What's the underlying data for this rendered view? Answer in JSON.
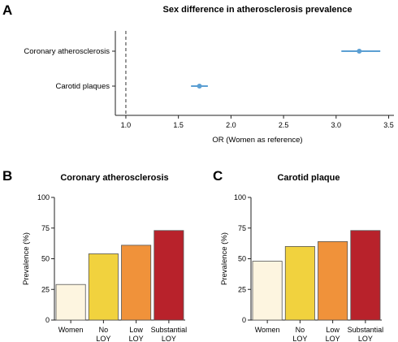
{
  "chart_data": [
    {
      "panel": "A",
      "type": "scatter",
      "title": "Sex difference in atherosclerosis prevalence",
      "xlabel": "OR (Women as reference)",
      "ylabel": "",
      "categories": [
        "Coronary atherosclerosis",
        "Carotid plaques"
      ],
      "estimates": [
        3.22,
        1.7
      ],
      "ci_low": [
        3.05,
        1.62
      ],
      "ci_high": [
        3.42,
        1.78
      ],
      "xlim": [
        0.9,
        3.55
      ],
      "xticks": [
        "1.0",
        "1.5",
        "2.0",
        "2.5",
        "3.0",
        "3.5"
      ],
      "reference_line": 1.0,
      "grid": false,
      "colors": {
        "point": "#5b9fd3",
        "reference": "#555555"
      }
    },
    {
      "panel": "B",
      "type": "bar",
      "title": "Coronary atherosclerosis",
      "ylabel": "Prevalence (%)",
      "categories": [
        [
          "Women"
        ],
        [
          "No",
          "LOY"
        ],
        [
          "Low",
          "LOY"
        ],
        [
          "Substantial",
          "LOY"
        ]
      ],
      "values": [
        29,
        54,
        61,
        73
      ],
      "ylim": [
        0,
        100
      ],
      "yticks": [
        "0",
        "25",
        "50",
        "75",
        "100"
      ],
      "grid": false,
      "colors": [
        "#fdf5e0",
        "#f1d23e",
        "#f0923a",
        "#b8222b"
      ]
    },
    {
      "panel": "C",
      "type": "bar",
      "title": "Carotid plaque",
      "ylabel": "Prevalence (%)",
      "categories": [
        [
          "Women"
        ],
        [
          "No",
          "LOY"
        ],
        [
          "Low",
          "LOY"
        ],
        [
          "Substantial",
          "LOY"
        ]
      ],
      "values": [
        48,
        60,
        64,
        73
      ],
      "ylim": [
        0,
        100
      ],
      "yticks": [
        "0",
        "25",
        "50",
        "75",
        "100"
      ],
      "grid": false,
      "colors": [
        "#fdf5e0",
        "#f1d23e",
        "#f0923a",
        "#b8222b"
      ]
    }
  ]
}
